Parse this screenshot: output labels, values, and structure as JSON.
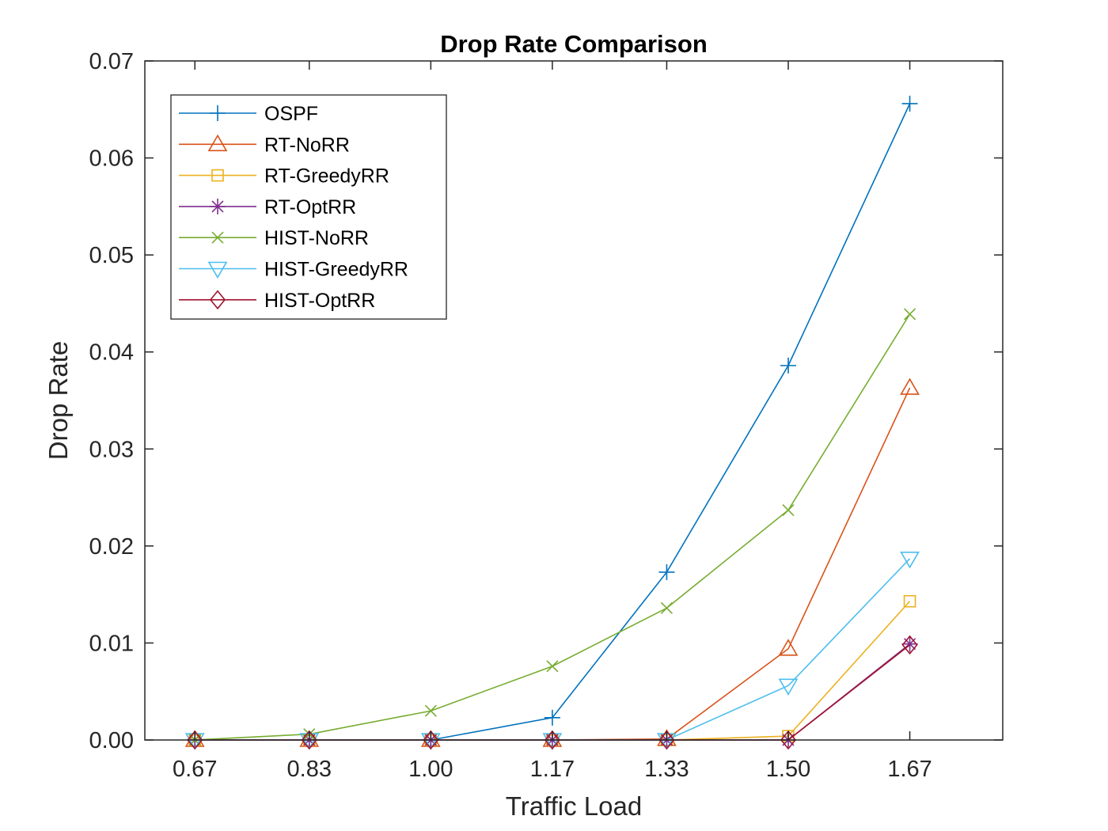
{
  "chart_data": {
    "type": "line",
    "title": "Drop Rate Comparison",
    "xlabel": "Traffic Load",
    "ylabel": "Drop Rate",
    "categories": [
      "0.67",
      "0.83",
      "1.00",
      "1.17",
      "1.33",
      "1.50",
      "1.67"
    ],
    "x": [
      0.67,
      0.83,
      1.0,
      1.17,
      1.33,
      1.5,
      1.67
    ],
    "xlim": [
      0.6,
      1.8
    ],
    "ylim": [
      0,
      0.07
    ],
    "yticks": [
      "0.00",
      "0.01",
      "0.02",
      "0.03",
      "0.04",
      "0.05",
      "0.06",
      "0.07"
    ],
    "grid": false,
    "legend_position": "top-left",
    "series": [
      {
        "name": "OSPF",
        "color": "#0072BD",
        "marker": "plus",
        "values": [
          0,
          0,
          0,
          0.0023,
          0.0173,
          0.0386,
          0.0656
        ]
      },
      {
        "name": "RT-NoRR",
        "color": "#D95319",
        "marker": "triangle-up",
        "values": [
          0,
          0,
          0,
          0,
          0.0001,
          0.0094,
          0.0363
        ]
      },
      {
        "name": "RT-GreedyRR",
        "color": "#EDB120",
        "marker": "square",
        "values": [
          0,
          0,
          0,
          0,
          0,
          0.0004,
          0.0143
        ]
      },
      {
        "name": "RT-OptRR",
        "color": "#7E2F8E",
        "marker": "asterisk",
        "values": [
          0,
          0,
          0,
          0,
          0,
          0,
          0.0099
        ]
      },
      {
        "name": "HIST-NoRR",
        "color": "#77AC30",
        "marker": "x",
        "values": [
          0,
          0.0006,
          0.003,
          0.0076,
          0.0136,
          0.0237,
          0.0439
        ]
      },
      {
        "name": "HIST-GreedyRR",
        "color": "#4DBEEE",
        "marker": "triangle-down",
        "values": [
          0,
          0,
          0,
          0,
          0,
          0.0056,
          0.0187
        ]
      },
      {
        "name": "HIST-OptRR",
        "color": "#A2142F",
        "marker": "diamond",
        "values": [
          0,
          0,
          0,
          0,
          0,
          0,
          0.0098
        ]
      }
    ]
  }
}
